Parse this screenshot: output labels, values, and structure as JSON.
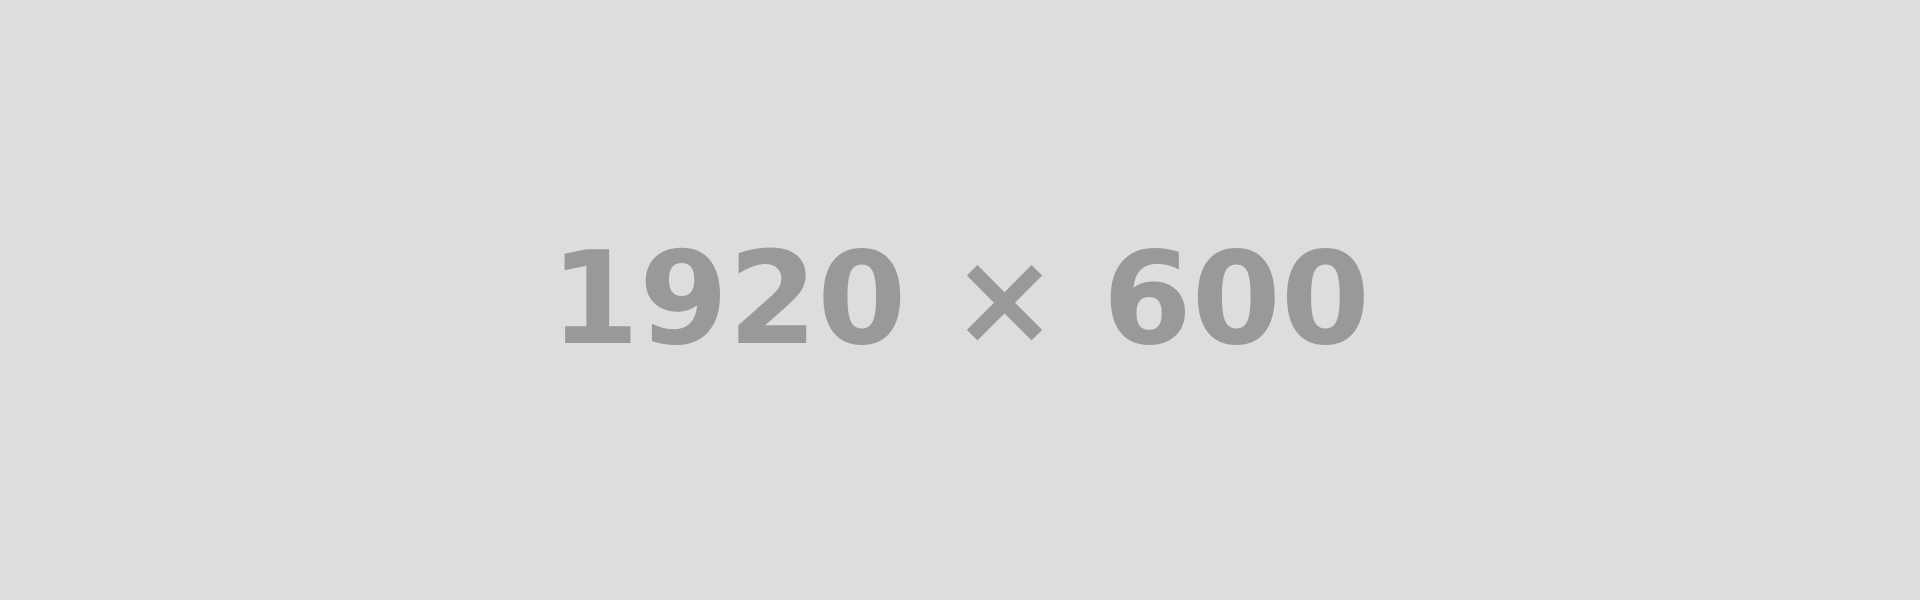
{
  "placeholder": {
    "label": "1920 × 600",
    "background_color": "#dddddd",
    "text_color": "#999999"
  }
}
